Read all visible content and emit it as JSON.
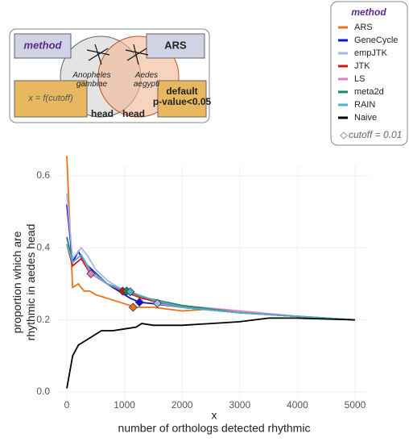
{
  "chart_data": {
    "type": "line",
    "diagram": {
      "method_box": "method",
      "method_value": "ARS",
      "species_1": "Anopheles gambiae",
      "species_2": "Aedes aegypti",
      "tissue_1": "head",
      "tissue_2": "head",
      "x_rule": "x = f(cutoff)",
      "y_rule": "default p-value<0.05"
    },
    "legend_title": "method",
    "annotation": "cutoff = 0.01",
    "x_label_top": "x",
    "x_label": "number of orthologs detected rhythmic",
    "y_label": [
      "proportion which are",
      "rhythmic in aedes head"
    ],
    "xlim": [
      0,
      5000
    ],
    "xticks": [
      0,
      1000,
      2000,
      3000,
      4000,
      5000
    ],
    "ylim": [
      0,
      0.64
    ],
    "yticks": [
      {
        "value": 0,
        "label": "0.0"
      },
      {
        "value": 0.2,
        "label": "0.2"
      },
      {
        "value": 0.4,
        "label": "0.4"
      },
      {
        "value": 0.6,
        "label": "0.6"
      }
    ],
    "grid": true,
    "series": [
      {
        "name": "ARS",
        "color": "#e8731a",
        "x": [
          0,
          100,
          200,
          300,
          400,
          500,
          700,
          900,
          1100,
          1200,
          1500,
          2000,
          2500,
          3000,
          4000,
          5000
        ],
        "values": [
          0.655,
          0.29,
          0.3,
          0.28,
          0.28,
          0.27,
          0.26,
          0.25,
          0.24,
          0.235,
          0.235,
          0.225,
          0.23,
          0.22,
          0.21,
          0.2
        ],
        "cutoff_x": 1150,
        "cutoff_y": 0.235
      },
      {
        "name": "GeneCycle",
        "color": "#1414cc",
        "x": [
          0,
          100,
          200,
          300,
          500,
          700,
          900,
          1100,
          1260,
          1500,
          2000,
          3000,
          4000,
          5000
        ],
        "values": [
          0.52,
          0.36,
          0.39,
          0.36,
          0.33,
          0.3,
          0.28,
          0.26,
          0.249,
          0.245,
          0.235,
          0.22,
          0.21,
          0.2
        ],
        "cutoff_x": 1260,
        "cutoff_y": 0.249
      },
      {
        "name": "empJTK",
        "color": "#aab8e8",
        "x": [
          0,
          100,
          250,
          350,
          500,
          700,
          900,
          1100,
          1570,
          2000,
          3000,
          4000,
          5000
        ],
        "values": [
          0.55,
          0.37,
          0.4,
          0.38,
          0.34,
          0.31,
          0.29,
          0.275,
          0.246,
          0.235,
          0.22,
          0.21,
          0.2
        ],
        "cutoff_x": 1570,
        "cutoff_y": 0.246
      },
      {
        "name": "JTK",
        "color": "#d01818",
        "x": [
          0,
          100,
          250,
          400,
          700,
          970,
          1300,
          2000,
          3000,
          4000,
          5000
        ],
        "values": [
          0.41,
          0.35,
          0.37,
          0.33,
          0.3,
          0.28,
          0.26,
          0.235,
          0.22,
          0.21,
          0.2
        ],
        "cutoff_x": 970,
        "cutoff_y": 0.28
      },
      {
        "name": "LS",
        "color": "#e080c0",
        "x": [
          0,
          100,
          250,
          417,
          700,
          1000,
          1400,
          2000,
          3000,
          4000,
          5000
        ],
        "values": [
          0.43,
          0.36,
          0.38,
          0.328,
          0.3,
          0.28,
          0.26,
          0.24,
          0.225,
          0.21,
          0.2
        ],
        "cutoff_x": 417,
        "cutoff_y": 0.328
      },
      {
        "name": "meta2d",
        "color": "#1a8a70",
        "x": [
          0,
          100,
          250,
          400,
          700,
          1040,
          1400,
          2000,
          3000,
          4000,
          5000
        ],
        "values": [
          0.43,
          0.36,
          0.38,
          0.34,
          0.3,
          0.28,
          0.26,
          0.24,
          0.22,
          0.21,
          0.2
        ],
        "cutoff_x": 1040,
        "cutoff_y": 0.28
      },
      {
        "name": "RAIN",
        "color": "#50b0c8",
        "x": [
          0,
          100,
          250,
          400,
          700,
          1100,
          1500,
          2000,
          3000,
          4000,
          5000
        ],
        "values": [
          0.41,
          0.36,
          0.38,
          0.34,
          0.3,
          0.278,
          0.255,
          0.235,
          0.22,
          0.21,
          0.2
        ],
        "cutoff_x": 1100,
        "cutoff_y": 0.278
      },
      {
        "name": "Naive",
        "color": "#000000",
        "x": [
          0,
          100,
          200,
          400,
          600,
          800,
          1000,
          1200,
          1300,
          1500,
          2000,
          2500,
          3000,
          3500,
          4000,
          5000
        ],
        "values": [
          0.01,
          0.1,
          0.13,
          0.15,
          0.17,
          0.17,
          0.175,
          0.18,
          0.19,
          0.185,
          0.185,
          0.19,
          0.195,
          0.205,
          0.205,
          0.2
        ]
      }
    ]
  }
}
